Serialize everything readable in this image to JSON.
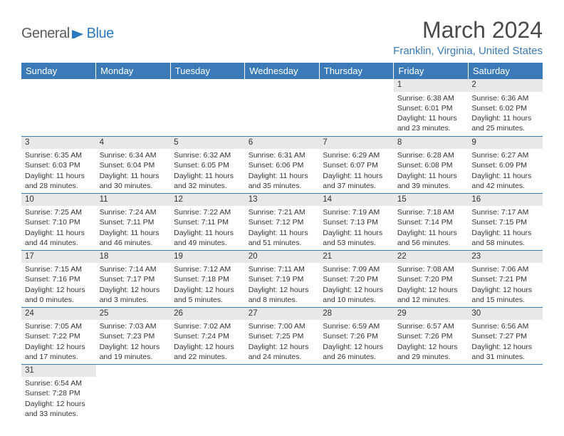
{
  "logo": {
    "general": "General",
    "blue": "Blue",
    "shape_color": "#2a78bd"
  },
  "title": "March 2024",
  "location": "Franklin, Virginia, United States",
  "header_bg": "#3a7ab8",
  "header_fg": "#ffffff",
  "daynum_bg": "#e8e8e8",
  "border_color": "#3a7ab8",
  "text_color": "#333333",
  "weekdays": [
    "Sunday",
    "Monday",
    "Tuesday",
    "Wednesday",
    "Thursday",
    "Friday",
    "Saturday"
  ],
  "weeks": [
    [
      null,
      null,
      null,
      null,
      null,
      {
        "n": "1",
        "sr": "Sunrise: 6:38 AM",
        "ss": "Sunset: 6:01 PM",
        "d1": "Daylight: 11 hours",
        "d2": "and 23 minutes."
      },
      {
        "n": "2",
        "sr": "Sunrise: 6:36 AM",
        "ss": "Sunset: 6:02 PM",
        "d1": "Daylight: 11 hours",
        "d2": "and 25 minutes."
      }
    ],
    [
      {
        "n": "3",
        "sr": "Sunrise: 6:35 AM",
        "ss": "Sunset: 6:03 PM",
        "d1": "Daylight: 11 hours",
        "d2": "and 28 minutes."
      },
      {
        "n": "4",
        "sr": "Sunrise: 6:34 AM",
        "ss": "Sunset: 6:04 PM",
        "d1": "Daylight: 11 hours",
        "d2": "and 30 minutes."
      },
      {
        "n": "5",
        "sr": "Sunrise: 6:32 AM",
        "ss": "Sunset: 6:05 PM",
        "d1": "Daylight: 11 hours",
        "d2": "and 32 minutes."
      },
      {
        "n": "6",
        "sr": "Sunrise: 6:31 AM",
        "ss": "Sunset: 6:06 PM",
        "d1": "Daylight: 11 hours",
        "d2": "and 35 minutes."
      },
      {
        "n": "7",
        "sr": "Sunrise: 6:29 AM",
        "ss": "Sunset: 6:07 PM",
        "d1": "Daylight: 11 hours",
        "d2": "and 37 minutes."
      },
      {
        "n": "8",
        "sr": "Sunrise: 6:28 AM",
        "ss": "Sunset: 6:08 PM",
        "d1": "Daylight: 11 hours",
        "d2": "and 39 minutes."
      },
      {
        "n": "9",
        "sr": "Sunrise: 6:27 AM",
        "ss": "Sunset: 6:09 PM",
        "d1": "Daylight: 11 hours",
        "d2": "and 42 minutes."
      }
    ],
    [
      {
        "n": "10",
        "sr": "Sunrise: 7:25 AM",
        "ss": "Sunset: 7:10 PM",
        "d1": "Daylight: 11 hours",
        "d2": "and 44 minutes."
      },
      {
        "n": "11",
        "sr": "Sunrise: 7:24 AM",
        "ss": "Sunset: 7:11 PM",
        "d1": "Daylight: 11 hours",
        "d2": "and 46 minutes."
      },
      {
        "n": "12",
        "sr": "Sunrise: 7:22 AM",
        "ss": "Sunset: 7:11 PM",
        "d1": "Daylight: 11 hours",
        "d2": "and 49 minutes."
      },
      {
        "n": "13",
        "sr": "Sunrise: 7:21 AM",
        "ss": "Sunset: 7:12 PM",
        "d1": "Daylight: 11 hours",
        "d2": "and 51 minutes."
      },
      {
        "n": "14",
        "sr": "Sunrise: 7:19 AM",
        "ss": "Sunset: 7:13 PM",
        "d1": "Daylight: 11 hours",
        "d2": "and 53 minutes."
      },
      {
        "n": "15",
        "sr": "Sunrise: 7:18 AM",
        "ss": "Sunset: 7:14 PM",
        "d1": "Daylight: 11 hours",
        "d2": "and 56 minutes."
      },
      {
        "n": "16",
        "sr": "Sunrise: 7:17 AM",
        "ss": "Sunset: 7:15 PM",
        "d1": "Daylight: 11 hours",
        "d2": "and 58 minutes."
      }
    ],
    [
      {
        "n": "17",
        "sr": "Sunrise: 7:15 AM",
        "ss": "Sunset: 7:16 PM",
        "d1": "Daylight: 12 hours",
        "d2": "and 0 minutes."
      },
      {
        "n": "18",
        "sr": "Sunrise: 7:14 AM",
        "ss": "Sunset: 7:17 PM",
        "d1": "Daylight: 12 hours",
        "d2": "and 3 minutes."
      },
      {
        "n": "19",
        "sr": "Sunrise: 7:12 AM",
        "ss": "Sunset: 7:18 PM",
        "d1": "Daylight: 12 hours",
        "d2": "and 5 minutes."
      },
      {
        "n": "20",
        "sr": "Sunrise: 7:11 AM",
        "ss": "Sunset: 7:19 PM",
        "d1": "Daylight: 12 hours",
        "d2": "and 8 minutes."
      },
      {
        "n": "21",
        "sr": "Sunrise: 7:09 AM",
        "ss": "Sunset: 7:20 PM",
        "d1": "Daylight: 12 hours",
        "d2": "and 10 minutes."
      },
      {
        "n": "22",
        "sr": "Sunrise: 7:08 AM",
        "ss": "Sunset: 7:20 PM",
        "d1": "Daylight: 12 hours",
        "d2": "and 12 minutes."
      },
      {
        "n": "23",
        "sr": "Sunrise: 7:06 AM",
        "ss": "Sunset: 7:21 PM",
        "d1": "Daylight: 12 hours",
        "d2": "and 15 minutes."
      }
    ],
    [
      {
        "n": "24",
        "sr": "Sunrise: 7:05 AM",
        "ss": "Sunset: 7:22 PM",
        "d1": "Daylight: 12 hours",
        "d2": "and 17 minutes."
      },
      {
        "n": "25",
        "sr": "Sunrise: 7:03 AM",
        "ss": "Sunset: 7:23 PM",
        "d1": "Daylight: 12 hours",
        "d2": "and 19 minutes."
      },
      {
        "n": "26",
        "sr": "Sunrise: 7:02 AM",
        "ss": "Sunset: 7:24 PM",
        "d1": "Daylight: 12 hours",
        "d2": "and 22 minutes."
      },
      {
        "n": "27",
        "sr": "Sunrise: 7:00 AM",
        "ss": "Sunset: 7:25 PM",
        "d1": "Daylight: 12 hours",
        "d2": "and 24 minutes."
      },
      {
        "n": "28",
        "sr": "Sunrise: 6:59 AM",
        "ss": "Sunset: 7:26 PM",
        "d1": "Daylight: 12 hours",
        "d2": "and 26 minutes."
      },
      {
        "n": "29",
        "sr": "Sunrise: 6:57 AM",
        "ss": "Sunset: 7:26 PM",
        "d1": "Daylight: 12 hours",
        "d2": "and 29 minutes."
      },
      {
        "n": "30",
        "sr": "Sunrise: 6:56 AM",
        "ss": "Sunset: 7:27 PM",
        "d1": "Daylight: 12 hours",
        "d2": "and 31 minutes."
      }
    ],
    [
      {
        "n": "31",
        "sr": "Sunrise: 6:54 AM",
        "ss": "Sunset: 7:28 PM",
        "d1": "Daylight: 12 hours",
        "d2": "and 33 minutes."
      },
      null,
      null,
      null,
      null,
      null,
      null
    ]
  ]
}
